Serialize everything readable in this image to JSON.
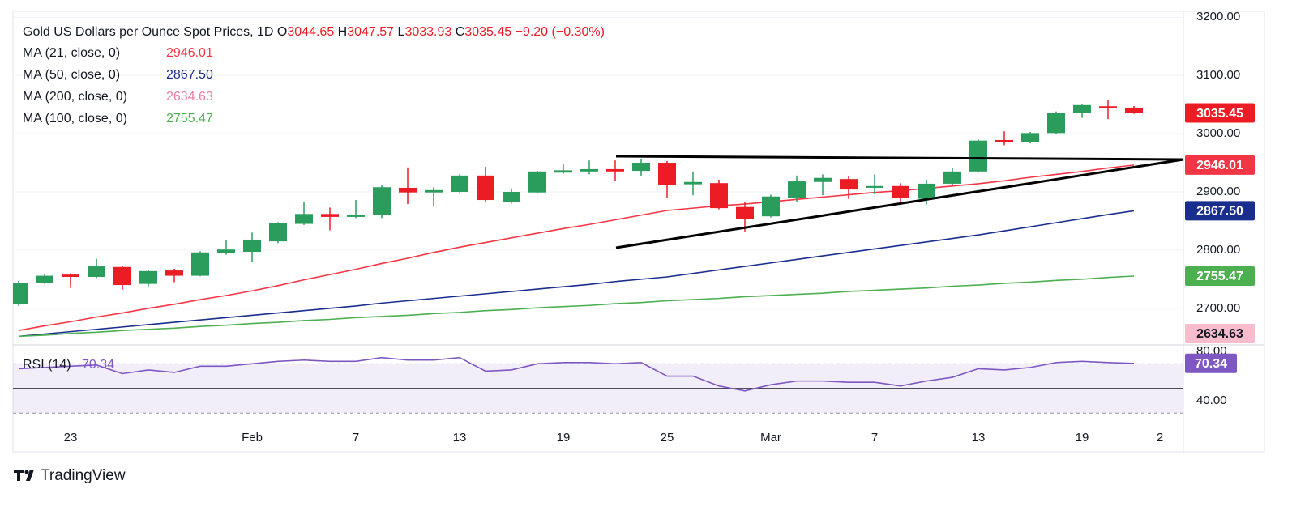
{
  "chart_data": [
    {
      "type": "candlestick",
      "title": "Gold US Dollars per Ounce Spot Prices, 1D",
      "ohlc_labels": [
        "O",
        "H",
        "L",
        "C"
      ],
      "change": "−9.20 (−0.30%)",
      "categories": [
        null,
        null,
        "23",
        null,
        null,
        null,
        null,
        null,
        null,
        "Feb",
        null,
        null,
        null,
        "7",
        null,
        null,
        null,
        "13",
        null,
        null,
        null,
        "19",
        null,
        null,
        null,
        "25",
        null,
        null,
        null,
        "Mar",
        null,
        null,
        null,
        "7",
        null,
        null,
        null,
        "13",
        null,
        null,
        null,
        "19",
        null,
        null,
        "2"
      ],
      "open": [
        2707,
        2744,
        2758,
        2754,
        2771,
        2742,
        2765,
        2756,
        2795,
        2797,
        2815,
        2845,
        2862,
        2857,
        2860,
        2907,
        2899,
        2900,
        2928,
        2883,
        2899,
        2933,
        2935,
        2939,
        2936,
        2950,
        2913,
        2915,
        2874,
        2858,
        2890,
        2917,
        2922,
        2907,
        2910,
        2888,
        2914,
        2935,
        2989,
        2986,
        3001,
        3035,
        3047,
        3044.65,
        null
      ],
      "high": [
        2747,
        2759,
        2760,
        2785,
        2772,
        2765,
        2768,
        2798,
        2817,
        2830,
        2848,
        2882,
        2873,
        2886,
        2911,
        2942,
        2908,
        2930,
        2943,
        2906,
        2936,
        2947,
        2954,
        2954,
        2956,
        2953,
        2935,
        2921,
        2882,
        2895,
        2928,
        2930,
        2927,
        2930,
        2915,
        2921,
        2941,
        2990,
        3004,
        3003,
        3038,
        3050,
        3057,
        3047.57,
        null
      ],
      "low": [
        2704,
        2742,
        2735,
        2752,
        2732,
        2738,
        2745,
        2755,
        2792,
        2780,
        2812,
        2843,
        2834,
        2855,
        2855,
        2879,
        2875,
        2899,
        2882,
        2880,
        2897,
        2931,
        2930,
        2918,
        2927,
        2889,
        2894,
        2870,
        2832,
        2856,
        2883,
        2894,
        2888,
        2896,
        2880,
        2878,
        2911,
        2933,
        2980,
        2983,
        3000,
        3027,
        3025,
        3033.93,
        null
      ],
      "close": [
        2743,
        2756,
        2754,
        2772,
        2740,
        2764,
        2756,
        2796,
        2801,
        2818,
        2846,
        2862,
        2857,
        2861,
        2908,
        2899,
        2903,
        2928,
        2886,
        2900,
        2935,
        2937,
        2939,
        2935,
        2950,
        2912,
        2917,
        2872,
        2854,
        2892,
        2918,
        2924,
        2904,
        2910,
        2889,
        2914,
        2935,
        2988,
        2985,
        3001,
        3035,
        3049,
        3044,
        3035.45,
        null
      ],
      "up_color": "#2a9d5c",
      "down_color": "#ec1c24",
      "ylim": [
        2640,
        3210
      ],
      "yticks": [
        {
          "value": 2700,
          "label": "2700.00"
        },
        {
          "value": 2800,
          "label": "2800.00"
        },
        {
          "value": 2900,
          "label": "2900.00"
        },
        {
          "value": 3000,
          "label": "3000.00"
        },
        {
          "value": 3100,
          "label": "3100.00"
        },
        {
          "value": 3200,
          "label": "3200.00"
        }
      ],
      "grid": true,
      "overlays": [
        {
          "name": "MA (21, close, 0)",
          "color": "#f23645",
          "legend_value": "2946.01",
          "values": [
            2662,
            2670,
            2677,
            2685,
            2692,
            2700,
            2707,
            2715,
            2722,
            2730,
            2739,
            2749,
            2758,
            2767,
            2777,
            2786,
            2796,
            2805,
            2813,
            2821,
            2829,
            2837,
            2844,
            2852,
            2860,
            2868,
            2872,
            2876,
            2879,
            2883,
            2887,
            2891,
            2895,
            2899,
            2902,
            2906,
            2910,
            2914,
            2919,
            2925,
            2930,
            2935,
            2941,
            2946.01,
            null
          ]
        },
        {
          "name": "MA (50, close, 0)",
          "color": "#1a2e8e",
          "legend_value": "2867.50",
          "values": [
            2652,
            2656,
            2660,
            2664,
            2668,
            2672,
            2676,
            2680,
            2684,
            2688,
            2692,
            2696,
            2700,
            2704,
            2709,
            2713,
            2717,
            2721,
            2725,
            2729,
            2733,
            2737,
            2741,
            2746,
            2750,
            2754,
            2760,
            2766,
            2772,
            2778,
            2784,
            2790,
            2796,
            2802,
            2808,
            2814,
            2820,
            2826,
            2833,
            2840,
            2847,
            2854,
            2861,
            2867.5,
            null
          ]
        },
        {
          "name": "MA (200, close, 0)",
          "color": "#f07ca0",
          "legend_value": "2634.63",
          "values": [
            null,
            null,
            null,
            null,
            null,
            null,
            null,
            null,
            null,
            null,
            null,
            null,
            null,
            null,
            null,
            null,
            null,
            null,
            null,
            null,
            null,
            null,
            null,
            null,
            null,
            null,
            null,
            null,
            null,
            null,
            null,
            null,
            null,
            null,
            null,
            null,
            null,
            null,
            null,
            null,
            null,
            null,
            null,
            2634.63,
            null
          ]
        },
        {
          "name": "MA (100, close, 0)",
          "color": "#4caf50",
          "legend_value": "2755.47",
          "values": [
            2652,
            2654,
            2657,
            2659,
            2662,
            2664,
            2666,
            2669,
            2671,
            2674,
            2676,
            2679,
            2681,
            2684,
            2686,
            2688,
            2691,
            2693,
            2696,
            2698,
            2701,
            2703,
            2705,
            2708,
            2710,
            2713,
            2715,
            2717,
            2720,
            2722,
            2724,
            2726,
            2729,
            2731,
            2733,
            2735,
            2738,
            2740,
            2743,
            2745,
            2748,
            2750,
            2753,
            2755.47,
            null
          ]
        }
      ]
    },
    {
      "type": "line",
      "name": "RSI (14)",
      "color": "#7e57c2",
      "values": [
        66,
        67,
        68,
        69,
        62,
        65,
        63,
        68,
        68,
        70,
        72,
        73,
        72,
        72,
        75,
        73,
        73,
        75,
        64,
        65,
        70,
        71,
        71,
        70,
        71,
        60,
        60,
        52,
        48,
        53,
        56,
        56,
        55,
        55,
        52,
        56,
        59,
        66,
        65,
        67,
        71,
        72,
        71,
        70.34,
        null
      ],
      "ylim": [
        17,
        84
      ],
      "yticks": [
        {
          "value": 40,
          "label": "40.00"
        },
        {
          "value": 80,
          "label": "80.00"
        }
      ],
      "levels": [
        70,
        30
      ],
      "midline": 50
    }
  ],
  "footer": {
    "brand": "TradingView"
  }
}
